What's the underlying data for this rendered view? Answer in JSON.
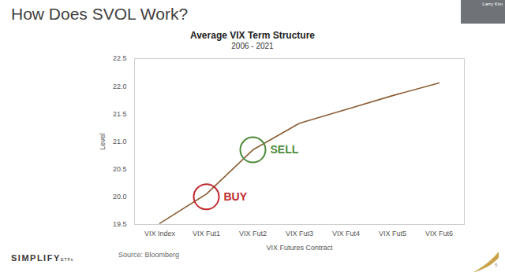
{
  "slide": {
    "title": "How Does SVOL Work?",
    "presenter": "Larry Kim",
    "logo": {
      "name": "SIMPLIFY",
      "suffix": "ETFs"
    },
    "page_number": 5
  },
  "chart_data": {
    "type": "line",
    "title": "Average VIX Term Structure",
    "subtitle": "2006 - 2021",
    "x_label": "VIX Futures Contract",
    "y_label": "Level",
    "source": "Source: Bloomberg",
    "categories": [
      "VIX Index",
      "VIX Fut1",
      "VIX Fut2",
      "VIX Fut3",
      "VIX Fut4",
      "VIX Fut5",
      "VIX Fut6"
    ],
    "values": [
      19.52,
      20.05,
      20.85,
      21.33,
      21.58,
      21.83,
      22.06
    ],
    "color": "#8b5e34",
    "ylim": [
      19.5,
      22.5
    ],
    "yticks": [
      19.5,
      {
        "value": 20,
        "label": "20.0"
      },
      20.5,
      {
        "value": 21,
        "label": "21.0"
      },
      21.5,
      {
        "value": 22,
        "label": "22.0"
      },
      22.5
    ],
    "grid": false,
    "annotations": [
      {
        "label": "BUY",
        "category": "VIX Fut1",
        "value": 20.0,
        "color": "#c0282d",
        "marker": "circle"
      },
      {
        "label": "SELL",
        "category": "VIX Fut2",
        "value": 20.85,
        "color": "#4e8b3a",
        "marker": "circle"
      }
    ]
  }
}
